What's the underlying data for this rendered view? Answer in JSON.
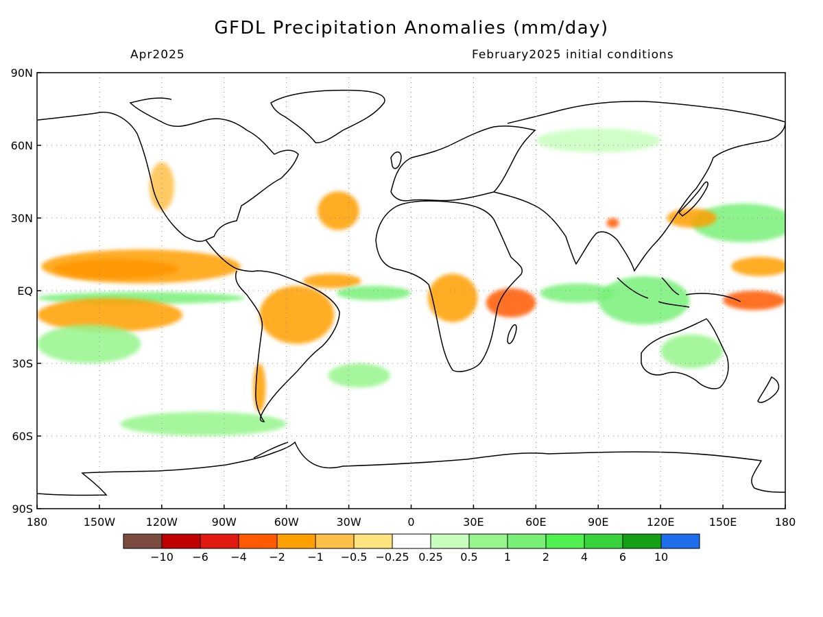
{
  "title": "GFDL Precipitation Anomalies (mm/day)",
  "subtitle_left": "Apr2025",
  "subtitle_right": "February2025 initial conditions",
  "map": {
    "lon_range": [
      -180,
      180
    ],
    "lat_range": [
      -90,
      90
    ],
    "grid": "dotted",
    "lat_ticks": [
      {
        "value": 90,
        "label": "90N"
      },
      {
        "value": 60,
        "label": "60N"
      },
      {
        "value": 30,
        "label": "30N"
      },
      {
        "value": 0,
        "label": "EQ"
      },
      {
        "value": -30,
        "label": "30S"
      },
      {
        "value": -60,
        "label": "60S"
      },
      {
        "value": -90,
        "label": "90S"
      }
    ],
    "lon_ticks": [
      {
        "value": -180,
        "label": "180"
      },
      {
        "value": -150,
        "label": "150W"
      },
      {
        "value": -120,
        "label": "120W"
      },
      {
        "value": -90,
        "label": "90W"
      },
      {
        "value": -60,
        "label": "60W"
      },
      {
        "value": -30,
        "label": "30W"
      },
      {
        "value": 0,
        "label": "0"
      },
      {
        "value": 30,
        "label": "30E"
      },
      {
        "value": 60,
        "label": "60E"
      },
      {
        "value": 90,
        "label": "90E"
      },
      {
        "value": 120,
        "label": "120E"
      },
      {
        "value": 150,
        "label": "150E"
      },
      {
        "value": 180,
        "label": "180"
      }
    ]
  },
  "colorbar": {
    "colors": [
      "#7a4b3f",
      "#c00000",
      "#e01a10",
      "#ff5a00",
      "#ff9f00",
      "#ffc04a",
      "#ffe37f",
      "#ffffff",
      "#c8ffbe",
      "#96f58c",
      "#78f078",
      "#50f050",
      "#37d23c",
      "#14a014",
      "#1e6eeb"
    ],
    "labels": [
      "-10",
      "-6",
      "-4",
      "-2",
      "-1",
      "-0.5",
      "-0.25",
      "0.25",
      "0.5",
      "1",
      "2",
      "4",
      "6",
      "10"
    ]
  },
  "anomaly_regions": [
    {
      "name": "central-pacific-dry-north",
      "lon": -142,
      "lat": 9,
      "rx": 30,
      "ry": 4,
      "level": "-2"
    },
    {
      "name": "east-pacific-dry-band",
      "lon": -130,
      "lat": 10,
      "rx": 48,
      "ry": 7,
      "level": "-1"
    },
    {
      "name": "equatorial-pacific-wet",
      "lon": -130,
      "lat": -3,
      "rx": 50,
      "ry": 2.5,
      "level": "1"
    },
    {
      "name": "south-pacific-dry",
      "lon": -145,
      "lat": -10,
      "rx": 35,
      "ry": 7,
      "level": "-1"
    },
    {
      "name": "south-pacific-wet",
      "lon": -155,
      "lat": -22,
      "rx": 25,
      "ry": 8,
      "level": "0.5"
    },
    {
      "name": "amazon-dry",
      "lon": -55,
      "lat": -10,
      "rx": 18,
      "ry": 12,
      "level": "-1"
    },
    {
      "name": "atlantic-itcz-dry",
      "lon": -38,
      "lat": 4,
      "rx": 14,
      "ry": 3,
      "level": "-1"
    },
    {
      "name": "atlantic-equatorial-wet",
      "lon": -18,
      "lat": -1,
      "rx": 18,
      "ry": 3,
      "level": "1"
    },
    {
      "name": "central-africa-dry",
      "lon": 20,
      "lat": -3,
      "rx": 12,
      "ry": 10,
      "level": "-1"
    },
    {
      "name": "east-africa-indian-dry",
      "lon": 48,
      "lat": -5,
      "rx": 12,
      "ry": 6,
      "level": "-2"
    },
    {
      "name": "indian-ocean-wet",
      "lon": 80,
      "lat": -1,
      "rx": 18,
      "ry": 4,
      "level": "1"
    },
    {
      "name": "maritime-continent-wet",
      "lon": 112,
      "lat": -4,
      "rx": 22,
      "ry": 10,
      "level": "1"
    },
    {
      "name": "west-pacific-dry",
      "lon": 165,
      "lat": -4,
      "rx": 15,
      "ry": 4,
      "level": "-2"
    },
    {
      "name": "west-pacific-dry-north",
      "lon": 168,
      "lat": 10,
      "rx": 14,
      "ry": 4,
      "level": "-1"
    },
    {
      "name": "north-pacific-wet",
      "lon": 160,
      "lat": 28,
      "rx": 25,
      "ry": 8,
      "level": "1"
    },
    {
      "name": "japan-dry",
      "lon": 135,
      "lat": 30,
      "rx": 12,
      "ry": 4,
      "level": "-1"
    },
    {
      "name": "tibet-dry-spot",
      "lon": 97,
      "lat": 28,
      "rx": 3,
      "ry": 2,
      "level": "-2"
    },
    {
      "name": "north-atlantic-dry",
      "lon": -35,
      "lat": 33,
      "rx": 10,
      "ry": 8,
      "level": "-1"
    },
    {
      "name": "south-atlantic-wet",
      "lon": -25,
      "lat": -35,
      "rx": 15,
      "ry": 5,
      "level": "0.5"
    },
    {
      "name": "southern-ocean-wet",
      "lon": -100,
      "lat": -55,
      "rx": 40,
      "ry": 5,
      "level": "0.5"
    },
    {
      "name": "chile-dry",
      "lon": -73,
      "lat": -40,
      "rx": 3,
      "ry": 10,
      "level": "-1"
    },
    {
      "name": "australia-wet",
      "lon": 135,
      "lat": -25,
      "rx": 15,
      "ry": 7,
      "level": "0.5"
    },
    {
      "name": "north-america-west-dry",
      "lon": -120,
      "lat": 43,
      "rx": 6,
      "ry": 10,
      "level": "-0.5"
    },
    {
      "name": "siberia-wet",
      "lon": 90,
      "lat": 62,
      "rx": 30,
      "ry": 5,
      "level": "0.25"
    }
  ]
}
